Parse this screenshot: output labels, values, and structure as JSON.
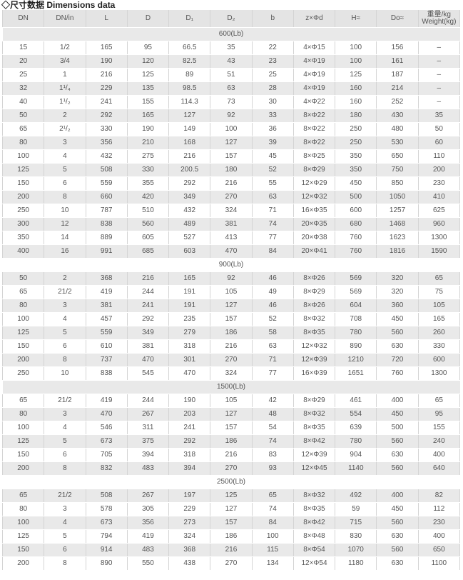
{
  "title": "◇尺寸数据 Dimensions data",
  "headers": [
    "DN",
    "DN/in",
    "L",
    "D",
    "D₁",
    "D₂",
    "b",
    "z×Φd",
    "H≈",
    "Do≈",
    "重量/kg\nWeight(kg)"
  ],
  "colors": {
    "header_bg": "#e4e4e4",
    "row_alt_bg": "#e9e9e9",
    "text": "#555555"
  },
  "sections": [
    {
      "label": "600(Lb)",
      "rows": [
        [
          "15",
          "1/2",
          "165",
          "95",
          "66.5",
          "35",
          "22",
          "4×Φ15",
          "100",
          "156",
          "–"
        ],
        [
          "20",
          "3/4",
          "190",
          "120",
          "82.5",
          "43",
          "23",
          "4×Φ19",
          "100",
          "161",
          "–"
        ],
        [
          "25",
          "1",
          "216",
          "125",
          "89",
          "51",
          "25",
          "4×Φ19",
          "125",
          "187",
          "–"
        ],
        [
          "32",
          "1¹/₄",
          "229",
          "135",
          "98.5",
          "63",
          "28",
          "4×Φ19",
          "160",
          "214",
          "–"
        ],
        [
          "40",
          "1¹/₂",
          "241",
          "155",
          "114.3",
          "73",
          "30",
          "4×Φ22",
          "160",
          "252",
          "–"
        ],
        [
          "50",
          "2",
          "292",
          "165",
          "127",
          "92",
          "33",
          "8×Φ22",
          "180",
          "430",
          "35"
        ],
        [
          "65",
          "2¹/₂",
          "330",
          "190",
          "149",
          "100",
          "36",
          "8×Φ22",
          "250",
          "480",
          "50"
        ],
        [
          "80",
          "3",
          "356",
          "210",
          "168",
          "127",
          "39",
          "8×Φ22",
          "250",
          "530",
          "60"
        ],
        [
          "100",
          "4",
          "432",
          "275",
          "216",
          "157",
          "45",
          "8×Φ25",
          "350",
          "650",
          "110"
        ],
        [
          "125",
          "5",
          "508",
          "330",
          "200.5",
          "180",
          "52",
          "8×Φ29",
          "350",
          "750",
          "200"
        ],
        [
          "150",
          "6",
          "559",
          "355",
          "292",
          "216",
          "55",
          "12×Φ29",
          "450",
          "850",
          "230"
        ],
        [
          "200",
          "8",
          "660",
          "420",
          "349",
          "270",
          "63",
          "12×Φ32",
          "500",
          "1050",
          "410"
        ],
        [
          "250",
          "10",
          "787",
          "510",
          "432",
          "324",
          "71",
          "16×Φ35",
          "600",
          "1257",
          "625"
        ],
        [
          "300",
          "12",
          "838",
          "560",
          "489",
          "381",
          "74",
          "20×Φ35",
          "680",
          "1468",
          "960"
        ],
        [
          "350",
          "14",
          "889",
          "605",
          "527",
          "413",
          "77",
          "20×Φ38",
          "760",
          "1623",
          "1300"
        ],
        [
          "400",
          "16",
          "991",
          "685",
          "603",
          "470",
          "84",
          "20×Φ41",
          "760",
          "1816",
          "1590"
        ]
      ]
    },
    {
      "label": "900(Lb)",
      "rows": [
        [
          "50",
          "2",
          "368",
          "216",
          "165",
          "92",
          "46",
          "8×Φ26",
          "569",
          "320",
          "65"
        ],
        [
          "65",
          "21/2",
          "419",
          "244",
          "191",
          "105",
          "49",
          "8×Φ29",
          "569",
          "320",
          "75"
        ],
        [
          "80",
          "3",
          "381",
          "241",
          "191",
          "127",
          "46",
          "8×Φ26",
          "604",
          "360",
          "105"
        ],
        [
          "100",
          "4",
          "457",
          "292",
          "235",
          "157",
          "52",
          "8×Φ32",
          "708",
          "450",
          "165"
        ],
        [
          "125",
          "5",
          "559",
          "349",
          "279",
          "186",
          "58",
          "8×Φ35",
          "780",
          "560",
          "260"
        ],
        [
          "150",
          "6",
          "610",
          "381",
          "318",
          "216",
          "63",
          "12×Φ32",
          "890",
          "630",
          "330"
        ],
        [
          "200",
          "8",
          "737",
          "470",
          "301",
          "270",
          "71",
          "12×Φ39",
          "1210",
          "720",
          "600"
        ],
        [
          "250",
          "10",
          "838",
          "545",
          "470",
          "324",
          "77",
          "16×Φ39",
          "1651",
          "760",
          "1300"
        ]
      ]
    },
    {
      "label": "1500(Lb)",
      "rows": [
        [
          "65",
          "21/2",
          "419",
          "244",
          "190",
          "105",
          "42",
          "8×Φ29",
          "461",
          "400",
          "65"
        ],
        [
          "80",
          "3",
          "470",
          "267",
          "203",
          "127",
          "48",
          "8×Φ32",
          "554",
          "450",
          "95"
        ],
        [
          "100",
          "4",
          "546",
          "311",
          "241",
          "157",
          "54",
          "8×Φ35",
          "639",
          "500",
          "155"
        ],
        [
          "125",
          "5",
          "673",
          "375",
          "292",
          "186",
          "74",
          "8×Φ42",
          "780",
          "560",
          "240"
        ],
        [
          "150",
          "6",
          "705",
          "394",
          "318",
          "216",
          "83",
          "12×Φ39",
          "904",
          "630",
          "400"
        ],
        [
          "200",
          "8",
          "832",
          "483",
          "394",
          "270",
          "93",
          "12×Φ45",
          "1140",
          "560",
          "640"
        ]
      ]
    },
    {
      "label": "2500(Lb)",
      "rows": [
        [
          "65",
          "21/2",
          "508",
          "267",
          "197",
          "125",
          "65",
          "8×Φ32",
          "492",
          "400",
          "82"
        ],
        [
          "80",
          "3",
          "578",
          "305",
          "229",
          "127",
          "74",
          "8×Φ35",
          "59",
          "450",
          "112"
        ],
        [
          "100",
          "4",
          "673",
          "356",
          "273",
          "157",
          "84",
          "8×Φ42",
          "715",
          "560",
          "230"
        ],
        [
          "125",
          "5",
          "794",
          "419",
          "324",
          "186",
          "100",
          "8×Φ48",
          "830",
          "630",
          "400"
        ],
        [
          "150",
          "6",
          "914",
          "483",
          "368",
          "216",
          "115",
          "8×Φ54",
          "1070",
          "560",
          "650"
        ],
        [
          "200",
          "8",
          "890",
          "550",
          "438",
          "270",
          "134",
          "12×Φ54",
          "1180",
          "630",
          "1100"
        ]
      ]
    }
  ]
}
